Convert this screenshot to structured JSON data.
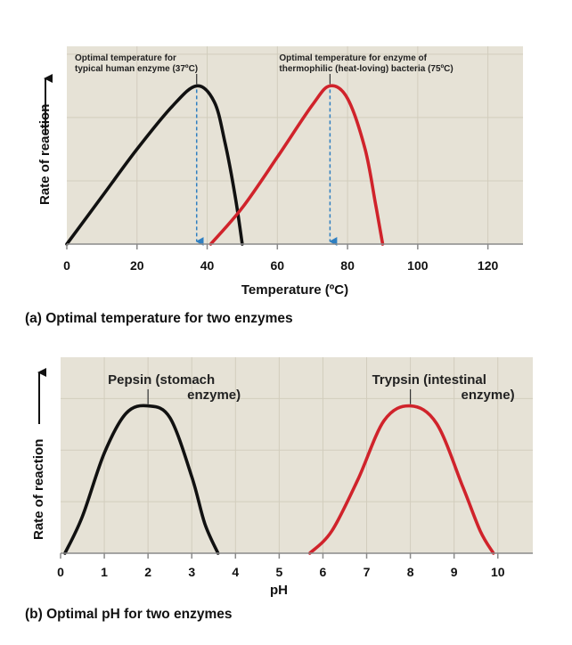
{
  "colors": {
    "plot_bg": "#e6e2d6",
    "grid": "#d2cdbd",
    "axis": "#8a8a8a",
    "black_curve": "#111111",
    "red_curve": "#d0232b",
    "arrow_blue": "#2f7fc1"
  },
  "chart_data": [
    {
      "type": "line",
      "caption": "(a) Optimal temperature for two enzymes",
      "xlabel": "Temperature (ºC)",
      "ylabel": "Rate of reaction",
      "xlim": [
        0,
        130
      ],
      "ylim": [
        0,
        1.25
      ],
      "xticks": [
        0,
        20,
        40,
        60,
        80,
        100,
        120
      ],
      "grid": true,
      "series": [
        {
          "color": "black",
          "x": [
            0,
            10,
            20,
            30,
            37,
            42,
            45,
            48,
            50
          ],
          "y": [
            0.0,
            0.3,
            0.6,
            0.87,
            1.0,
            0.9,
            0.65,
            0.3,
            0.0
          ]
        },
        {
          "color": "red",
          "x": [
            41,
            50,
            60,
            70,
            75,
            80,
            85,
            88,
            90
          ],
          "y": [
            0.0,
            0.23,
            0.55,
            0.88,
            1.0,
            0.92,
            0.6,
            0.25,
            0.0
          ]
        }
      ],
      "annotations": [
        {
          "lines": [
            "Optimal temperature for",
            "typical human enzyme (37ºC)"
          ],
          "x": 37,
          "target_y": 1.0
        },
        {
          "lines": [
            "Optimal temperature for enzyme of",
            "thermophilic (heat-loving) bacteria (75ºC)"
          ],
          "x": 75,
          "target_y": 1.0
        }
      ]
    },
    {
      "type": "line",
      "caption": "(b) Optimal pH for two enzymes",
      "xlabel": "pH",
      "ylabel": "Rate of reaction",
      "xlim": [
        0,
        10.8
      ],
      "ylim": [
        0,
        1.33
      ],
      "xticks": [
        0,
        1,
        2,
        3,
        4,
        5,
        6,
        7,
        8,
        9,
        10
      ],
      "grid": true,
      "series": [
        {
          "color": "black",
          "x": [
            0.1,
            0.5,
            1.0,
            1.5,
            2.0,
            2.5,
            3.0,
            3.3,
            3.6
          ],
          "y": [
            0.0,
            0.25,
            0.68,
            0.95,
            1.0,
            0.92,
            0.52,
            0.2,
            0.0
          ]
        },
        {
          "color": "red",
          "x": [
            5.7,
            6.2,
            6.8,
            7.4,
            8.0,
            8.6,
            9.2,
            9.6,
            9.9
          ],
          "y": [
            0.0,
            0.15,
            0.5,
            0.9,
            1.0,
            0.88,
            0.45,
            0.15,
            0.0
          ]
        }
      ],
      "annotations": [
        {
          "lines": [
            "Pepsin (stomach",
            "enzyme)"
          ],
          "x": 2,
          "target_y": 1.0
        },
        {
          "lines": [
            "Trypsin (intestinal",
            "enzyme)"
          ],
          "x": 8,
          "target_y": 1.0
        }
      ]
    }
  ]
}
